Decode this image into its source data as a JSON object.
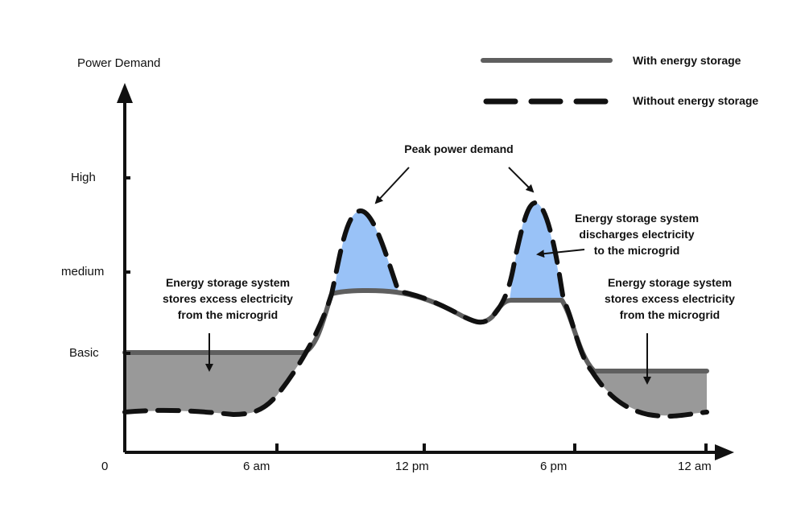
{
  "y_axis": {
    "title": "Power Demand",
    "levels": [
      "High",
      "medium",
      "Basic"
    ]
  },
  "x_axis": {
    "origin": "0",
    "ticks": [
      "6 am",
      "12 pm",
      "6 pm",
      "12 am"
    ]
  },
  "legend": {
    "with_storage": "With energy storage",
    "without_storage": "Without energy storage"
  },
  "annotations": {
    "peak": "Peak power demand",
    "stores_left": [
      "Energy storage system",
      "stores excess electricity",
      "from the microgrid"
    ],
    "discharges": [
      "Energy storage system",
      "discharges electricity",
      "to the microgrid"
    ],
    "stores_right": [
      "Energy storage system",
      "stores excess electricity",
      "from the microgrid"
    ]
  },
  "colors": {
    "with_line": "#5f5f5f",
    "without_line": "#111111",
    "storage_fill": "#999999",
    "discharge_fill": "#99c2f7",
    "axis": "#111111"
  }
}
